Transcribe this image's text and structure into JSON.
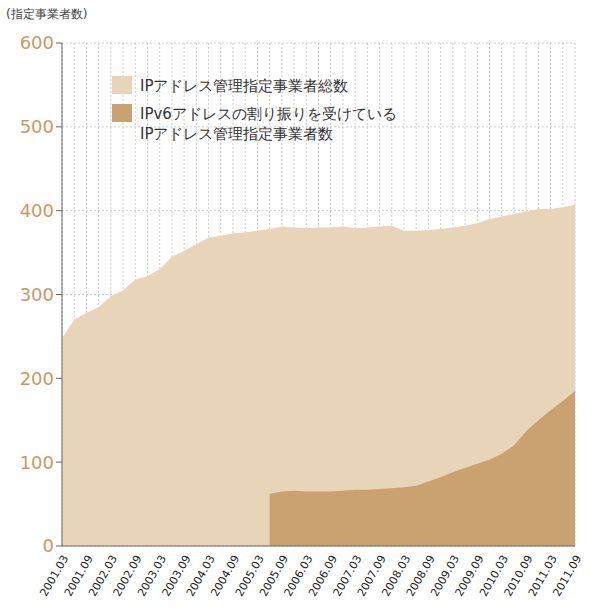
{
  "chart_data": {
    "type": "area",
    "y_label": "(指定事業者数)",
    "categories": [
      "2001.03",
      null,
      "2001.09",
      null,
      "2002.03",
      null,
      "2002.09",
      null,
      "2003.03",
      null,
      "2003.09",
      null,
      "2004.03",
      null,
      "2004.09",
      null,
      "2005.03",
      null,
      "2005.09",
      null,
      "2006.03",
      null,
      "2006.09",
      null,
      "2007.03",
      null,
      "2007.09",
      null,
      "2008.03",
      null,
      "2008.09",
      null,
      "2009.03",
      null,
      "2009.09",
      null,
      "2010.03",
      null,
      "2010.09",
      null,
      "2011.03",
      null,
      "2011.09"
    ],
    "series": [
      {
        "name": "IPアドレス管理指定事業者総数",
        "color": "#e8d4b8",
        "values": [
          248,
          270,
          278,
          285,
          298,
          305,
          318,
          322,
          330,
          345,
          352,
          360,
          368,
          370,
          373,
          374,
          376,
          378,
          381,
          380,
          379,
          380,
          380,
          381,
          379,
          380,
          381,
          382,
          376,
          376,
          377,
          378,
          380,
          382,
          385,
          390,
          393,
          396,
          399,
          402,
          402,
          404,
          407
        ]
      },
      {
        "name": "IPv6アドレスの割り振りを受けている\nIPアドレス管理指定事業者数",
        "color": "#c9a26f",
        "values": [
          null,
          null,
          null,
          null,
          null,
          null,
          null,
          null,
          null,
          null,
          null,
          null,
          null,
          null,
          null,
          null,
          null,
          62,
          65,
          66,
          65,
          65,
          65,
          66,
          67,
          67,
          68,
          69,
          70,
          72,
          77,
          82,
          88,
          93,
          98,
          103,
          110,
          120,
          137,
          150,
          162,
          173,
          185
        ]
      }
    ],
    "ylim": [
      0,
      600
    ],
    "yticks": [
      0,
      100,
      200,
      300,
      400,
      500,
      600
    ],
    "grid": true,
    "legend": "upper left",
    "stacked": false
  }
}
